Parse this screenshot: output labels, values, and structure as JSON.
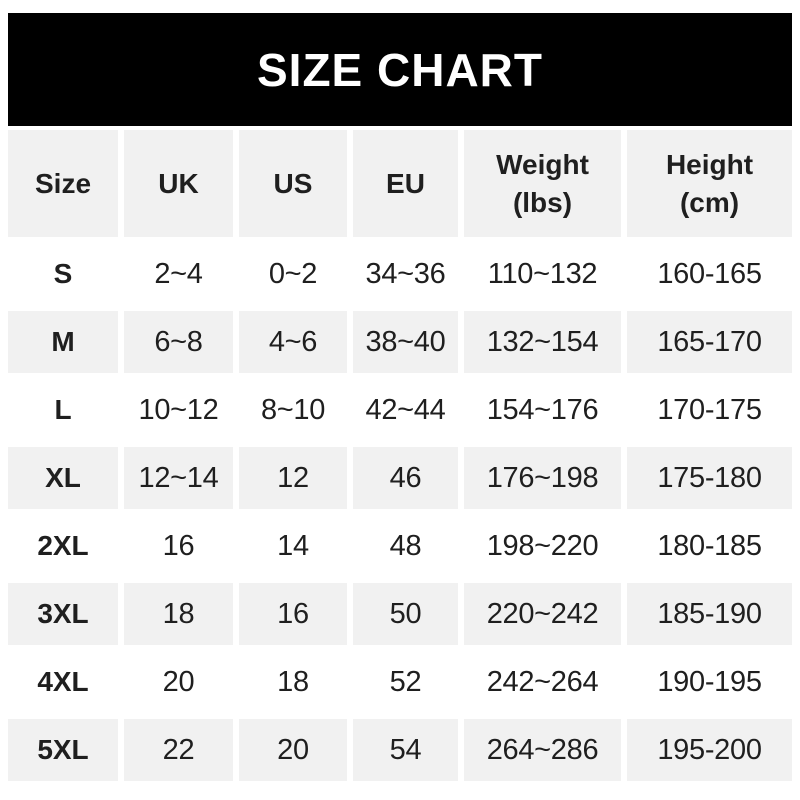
{
  "banner": {
    "title": "SIZE CHART"
  },
  "colors": {
    "banner_bg": "#000000",
    "banner_text": "#ffffff",
    "row_gray": "#f1f1f1",
    "row_white": "#ffffff",
    "text": "#1f1f1f"
  },
  "chart_data": {
    "type": "table",
    "title": "SIZE CHART",
    "columns": [
      {
        "l1": "Size"
      },
      {
        "l1": "UK"
      },
      {
        "l1": "US"
      },
      {
        "l1": "EU"
      },
      {
        "l1": "Weight",
        "l2": "(lbs)"
      },
      {
        "l1": "Height",
        "l2": "(cm)"
      }
    ],
    "rows": [
      [
        "S",
        "2~4",
        "0~2",
        "34~36",
        "110~132",
        "160-165"
      ],
      [
        "M",
        "6~8",
        "4~6",
        "38~40",
        "132~154",
        "165-170"
      ],
      [
        "L",
        "10~12",
        "8~10",
        "42~44",
        "154~176",
        "170-175"
      ],
      [
        "XL",
        "12~14",
        "12",
        "46",
        "176~198",
        "175-180"
      ],
      [
        "2XL",
        "16",
        "14",
        "48",
        "198~220",
        "180-185"
      ],
      [
        "3XL",
        "18",
        "16",
        "50",
        "220~242",
        "185-190"
      ],
      [
        "4XL",
        "20",
        "18",
        "52",
        "242~264",
        "190-195"
      ],
      [
        "5XL",
        "22",
        "20",
        "54",
        "264~286",
        "195-200"
      ]
    ]
  }
}
